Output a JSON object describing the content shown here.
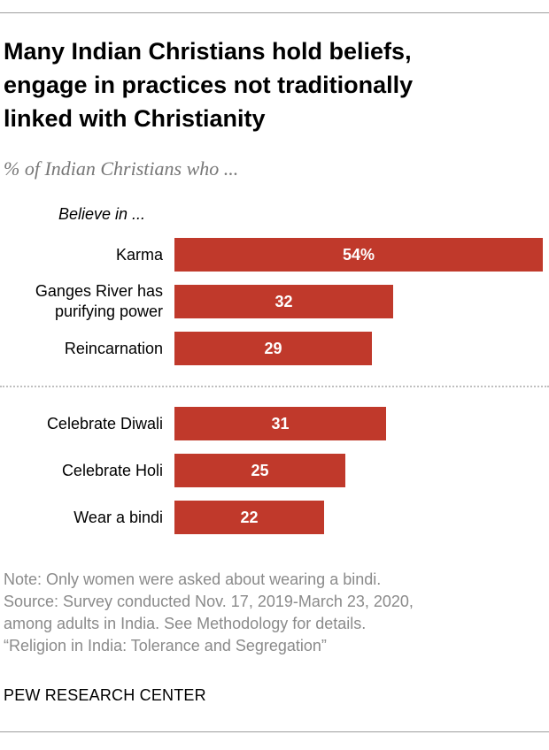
{
  "title_lines": [
    "Many Indian Christians hold beliefs,",
    "engage in practices not traditionally",
    "linked with Christianity"
  ],
  "subtitle": "% of Indian Christians who ...",
  "group_label": "Believe in ...",
  "colors": {
    "bar": "#c0392b",
    "note": "#8a8a8a",
    "subtitle": "#777777"
  },
  "chart_data": {
    "type": "bar",
    "orientation": "horizontal",
    "categories": [
      "Karma",
      "Ganges River has purifying power",
      "Reincarnation",
      "Celebrate Diwali",
      "Celebrate Holi",
      "Wear a bindi"
    ],
    "category_lines": [
      [
        "Karma"
      ],
      [
        "Ganges River has",
        "purifying power"
      ],
      [
        "Reincarnation"
      ],
      [
        "Celebrate Diwali"
      ],
      [
        "Celebrate Holi"
      ],
      [
        "Wear a bindi"
      ]
    ],
    "values": [
      54,
      32,
      29,
      31,
      25,
      22
    ],
    "value_labels": [
      "54%",
      "32",
      "29",
      "31",
      "25",
      "22"
    ],
    "groups": [
      {
        "label": "Believe in ...",
        "indices": [
          0,
          1,
          2
        ]
      },
      {
        "label": "",
        "indices": [
          3,
          4,
          5
        ]
      }
    ],
    "xlim": [
      0,
      54
    ],
    "grid": false,
    "legend": "none"
  },
  "notes": [
    "Note: Only women were asked about wearing a bindi.",
    "Source: Survey conducted Nov. 17, 2019-March 23, 2020,",
    "among adults in India. See Methodology for details.",
    "“Religion in India: Tolerance and Segregation”"
  ],
  "brand": "PEW RESEARCH CENTER"
}
